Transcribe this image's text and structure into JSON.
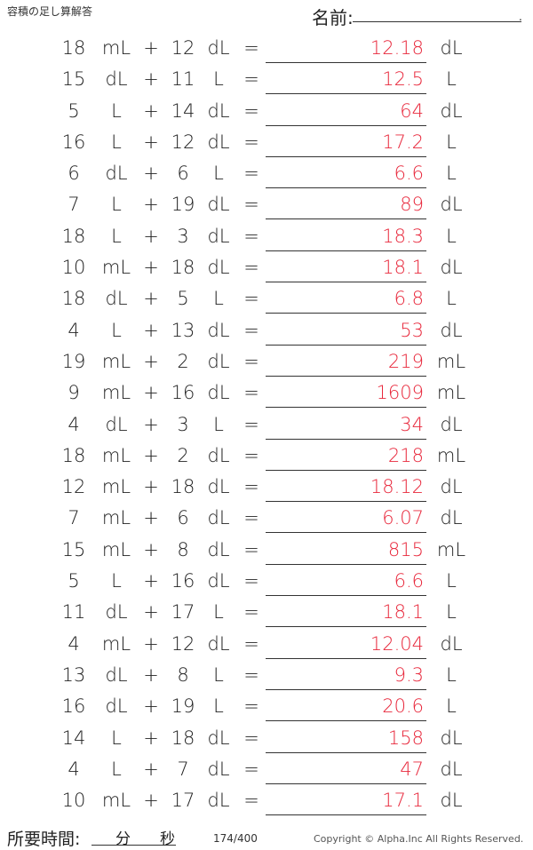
{
  "header": {
    "title": "容積の足し算解答",
    "name_label": "名前:"
  },
  "footer": {
    "time_label": "所要時間:",
    "minutes_label": "分",
    "seconds_label": "秒",
    "page": "174/400",
    "copyright": "Copyright © Alpha.Inc All Rights Reserved."
  },
  "problems": [
    {
      "a": "18",
      "u1": "mL",
      "op": "+",
      "b": "12",
      "u2": "dL",
      "eq": "=",
      "ans": "12.18",
      "u3": "dL"
    },
    {
      "a": "15",
      "u1": "dL",
      "op": "+",
      "b": "11",
      "u2": "L",
      "eq": "=",
      "ans": "12.5",
      "u3": "L"
    },
    {
      "a": "5",
      "u1": "L",
      "op": "+",
      "b": "14",
      "u2": "dL",
      "eq": "=",
      "ans": "64",
      "u3": "dL"
    },
    {
      "a": "16",
      "u1": "L",
      "op": "+",
      "b": "12",
      "u2": "dL",
      "eq": "=",
      "ans": "17.2",
      "u3": "L"
    },
    {
      "a": "6",
      "u1": "dL",
      "op": "+",
      "b": "6",
      "u2": "L",
      "eq": "=",
      "ans": "6.6",
      "u3": "L"
    },
    {
      "a": "7",
      "u1": "L",
      "op": "+",
      "b": "19",
      "u2": "dL",
      "eq": "=",
      "ans": "89",
      "u3": "dL"
    },
    {
      "a": "18",
      "u1": "L",
      "op": "+",
      "b": "3",
      "u2": "dL",
      "eq": "=",
      "ans": "18.3",
      "u3": "L"
    },
    {
      "a": "10",
      "u1": "mL",
      "op": "+",
      "b": "18",
      "u2": "dL",
      "eq": "=",
      "ans": "18.1",
      "u3": "dL"
    },
    {
      "a": "18",
      "u1": "dL",
      "op": "+",
      "b": "5",
      "u2": "L",
      "eq": "=",
      "ans": "6.8",
      "u3": "L"
    },
    {
      "a": "4",
      "u1": "L",
      "op": "+",
      "b": "13",
      "u2": "dL",
      "eq": "=",
      "ans": "53",
      "u3": "dL"
    },
    {
      "a": "19",
      "u1": "mL",
      "op": "+",
      "b": "2",
      "u2": "dL",
      "eq": "=",
      "ans": "219",
      "u3": "mL"
    },
    {
      "a": "9",
      "u1": "mL",
      "op": "+",
      "b": "16",
      "u2": "dL",
      "eq": "=",
      "ans": "1609",
      "u3": "mL"
    },
    {
      "a": "4",
      "u1": "dL",
      "op": "+",
      "b": "3",
      "u2": "L",
      "eq": "=",
      "ans": "34",
      "u3": "dL"
    },
    {
      "a": "18",
      "u1": "mL",
      "op": "+",
      "b": "2",
      "u2": "dL",
      "eq": "=",
      "ans": "218",
      "u3": "mL"
    },
    {
      "a": "12",
      "u1": "mL",
      "op": "+",
      "b": "18",
      "u2": "dL",
      "eq": "=",
      "ans": "18.12",
      "u3": "dL"
    },
    {
      "a": "7",
      "u1": "mL",
      "op": "+",
      "b": "6",
      "u2": "dL",
      "eq": "=",
      "ans": "6.07",
      "u3": "dL"
    },
    {
      "a": "15",
      "u1": "mL",
      "op": "+",
      "b": "8",
      "u2": "dL",
      "eq": "=",
      "ans": "815",
      "u3": "mL"
    },
    {
      "a": "5",
      "u1": "L",
      "op": "+",
      "b": "16",
      "u2": "dL",
      "eq": "=",
      "ans": "6.6",
      "u3": "L"
    },
    {
      "a": "11",
      "u1": "dL",
      "op": "+",
      "b": "17",
      "u2": "L",
      "eq": "=",
      "ans": "18.1",
      "u3": "L"
    },
    {
      "a": "4",
      "u1": "mL",
      "op": "+",
      "b": "12",
      "u2": "dL",
      "eq": "=",
      "ans": "12.04",
      "u3": "dL"
    },
    {
      "a": "13",
      "u1": "dL",
      "op": "+",
      "b": "8",
      "u2": "L",
      "eq": "=",
      "ans": "9.3",
      "u3": "L"
    },
    {
      "a": "16",
      "u1": "dL",
      "op": "+",
      "b": "19",
      "u2": "L",
      "eq": "=",
      "ans": "20.6",
      "u3": "L"
    },
    {
      "a": "14",
      "u1": "L",
      "op": "+",
      "b": "18",
      "u2": "dL",
      "eq": "=",
      "ans": "158",
      "u3": "dL"
    },
    {
      "a": "4",
      "u1": "L",
      "op": "+",
      "b": "7",
      "u2": "dL",
      "eq": "=",
      "ans": "47",
      "u3": "dL"
    },
    {
      "a": "10",
      "u1": "mL",
      "op": "+",
      "b": "17",
      "u2": "dL",
      "eq": "=",
      "ans": "17.1",
      "u3": "dL"
    }
  ]
}
